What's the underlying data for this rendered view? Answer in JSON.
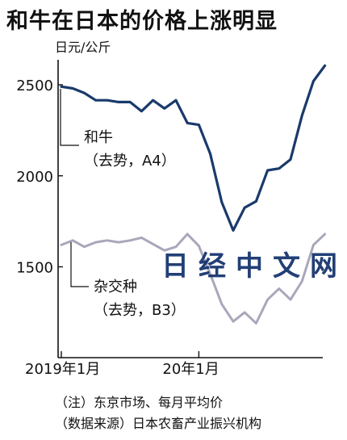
{
  "title": "和牛在日本的价格上涨明显",
  "watermark": "日经中文网",
  "notes": [
    "（注）东京市场、每月平均价",
    "（数据来源）日本农畜产业振兴机构"
  ],
  "colors": {
    "wagyu": "#1a3a6b",
    "crossbred": "#a9a7ba",
    "axis": "#111111",
    "watermark": "#0f2f6a"
  },
  "chart_data": {
    "type": "line",
    "ylabel": "日元/公斤",
    "ylim": [
      1000,
      2700
    ],
    "yticks": [
      1500,
      2000,
      2500
    ],
    "x": [
      "2019-01",
      "2019-02",
      "2019-03",
      "2019-04",
      "2019-05",
      "2019-06",
      "2019-07",
      "2019-08",
      "2019-09",
      "2019-10",
      "2019-11",
      "2019-12",
      "2020-01",
      "2020-02",
      "2020-03",
      "2020-04",
      "2020-05",
      "2020-06",
      "2020-07",
      "2020-08",
      "2020-09",
      "2020-10",
      "2020-11",
      "2020-12"
    ],
    "xticks": [
      {
        "x": "2019-01",
        "label": "2019年1月"
      },
      {
        "x": "2020-01",
        "label": "20年1月"
      }
    ],
    "grid": false,
    "legend": "inline",
    "series": [
      {
        "name": "和牛（去势，A4）",
        "label_lines": [
          "和牛",
          "（去势，A4）"
        ],
        "values": [
          2490,
          2480,
          2455,
          2415,
          2415,
          2405,
          2405,
          2355,
          2415,
          2370,
          2415,
          2290,
          2280,
          2120,
          1855,
          1700,
          1825,
          1860,
          2030,
          2040,
          2090,
          2330,
          2520,
          2605
        ]
      },
      {
        "name": "杂交种（去势，B3）",
        "label_lines": [
          "杂交种",
          "（去势，B3）"
        ],
        "values": [
          1620,
          1645,
          1610,
          1635,
          1645,
          1635,
          1645,
          1660,
          1625,
          1590,
          1610,
          1680,
          1615,
          1460,
          1295,
          1200,
          1250,
          1190,
          1320,
          1380,
          1320,
          1420,
          1620,
          1680
        ]
      }
    ]
  }
}
